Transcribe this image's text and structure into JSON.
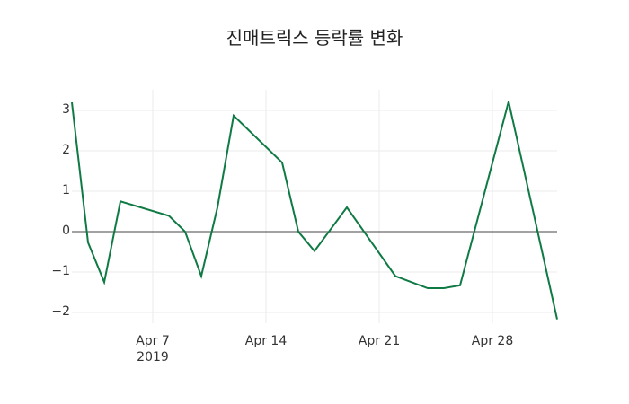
{
  "chart_data": {
    "type": "line",
    "title": "진매트릭스 등락률 변화",
    "xlabel": "",
    "ylabel": "",
    "ylim": [
      -2.4,
      3.5
    ],
    "grid": true,
    "legend": null,
    "line_color": "#0f7a44",
    "zero_line_color": "#444444",
    "x": [
      "2019-04-02",
      "2019-04-03",
      "2019-04-04",
      "2019-04-05",
      "2019-04-08",
      "2019-04-09",
      "2019-04-10",
      "2019-04-11",
      "2019-04-12",
      "2019-04-15",
      "2019-04-16",
      "2019-04-17",
      "2019-04-18",
      "2019-04-19",
      "2019-04-22",
      "2019-04-23",
      "2019-04-24",
      "2019-04-25",
      "2019-04-26",
      "2019-04-29",
      "2019-04-30",
      "2019-05-01",
      "2019-05-02"
    ],
    "series": [
      {
        "name": "등락률",
        "values": [
          3.2,
          -0.27,
          -1.25,
          0.75,
          0.39,
          0.0,
          -1.1,
          0.6,
          2.87,
          1.71,
          0.0,
          -0.48,
          0.06,
          0.6,
          -1.1,
          -1.25,
          -1.4,
          -1.4,
          -1.33,
          3.22,
          1.43,
          -0.37,
          -2.17
        ]
      }
    ],
    "y_ticks": [
      "3",
      "2",
      "1",
      "0",
      "−1",
      "−2"
    ],
    "y_tick_values": [
      3,
      2,
      1,
      0,
      -1,
      -2
    ],
    "x_ticks": [
      {
        "label": "Apr 7",
        "sub": "2019",
        "date": "2019-04-07"
      },
      {
        "label": "Apr 14",
        "sub": "",
        "date": "2019-04-14"
      },
      {
        "label": "Apr 21",
        "sub": "",
        "date": "2019-04-21"
      },
      {
        "label": "Apr 28",
        "sub": "",
        "date": "2019-04-28"
      }
    ]
  }
}
